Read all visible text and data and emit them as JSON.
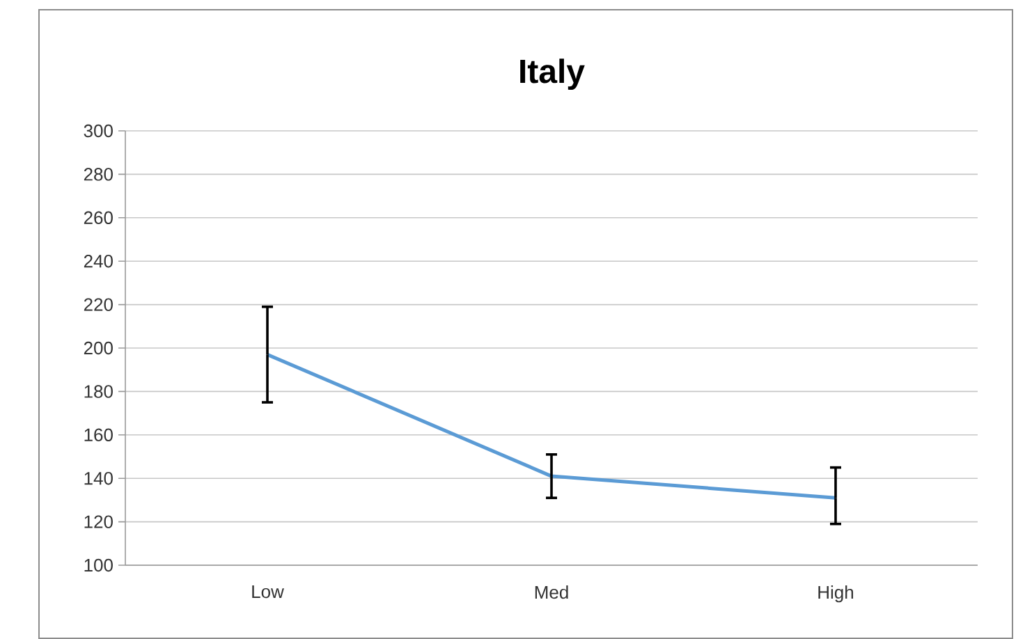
{
  "chart_data": {
    "type": "line",
    "title": "Italy",
    "categories": [
      "Low",
      "Med",
      "High"
    ],
    "values": [
      197,
      141,
      131
    ],
    "errors": [
      [
        175,
        219
      ],
      [
        131,
        151
      ],
      [
        119,
        145
      ]
    ],
    "color": "#5b9bd5",
    "ylim": [
      100,
      300
    ],
    "yticks": [
      100,
      120,
      140,
      160,
      180,
      200,
      220,
      240,
      260,
      280,
      300
    ],
    "grid": "y",
    "marker": "none",
    "line_style": "solid"
  }
}
